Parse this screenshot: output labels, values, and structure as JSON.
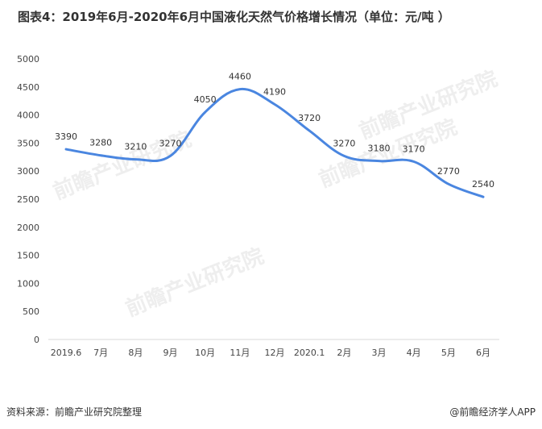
{
  "title": "图表4：2019年6月-2020年6月中国液化天然气价格增长情况（单位：元/吨 ）",
  "footer": {
    "source": "资料来源：前瞻产业研究院整理",
    "brand": "@前瞻经济学人APP"
  },
  "watermark": "前瞻产业研究院",
  "colors": {
    "line": "#4a86e0",
    "axis": "#d9d9d9",
    "text": "#333333"
  },
  "chart_data": {
    "type": "line",
    "title": "图表4：2019年6月-2020年6月中国液化天然气价格增长情况（单位：元/吨 ）",
    "categories": [
      "2019.6",
      "7月",
      "8月",
      "9月",
      "10月",
      "11月",
      "12月",
      "2020.1",
      "2月",
      "3月",
      "4月",
      "5月",
      "6月"
    ],
    "series": [
      {
        "values": [
          3390,
          3280,
          3210,
          3270,
          4050,
          4460,
          4190,
          3720,
          3270,
          3180,
          3170,
          2770,
          2540
        ]
      }
    ],
    "ylim": [
      0,
      5000
    ],
    "yticks": [
      0,
      500,
      1000,
      1500,
      2000,
      2500,
      3000,
      3500,
      4000,
      4500,
      5000
    ],
    "grid": false,
    "smooth": true,
    "data_labels": true
  }
}
